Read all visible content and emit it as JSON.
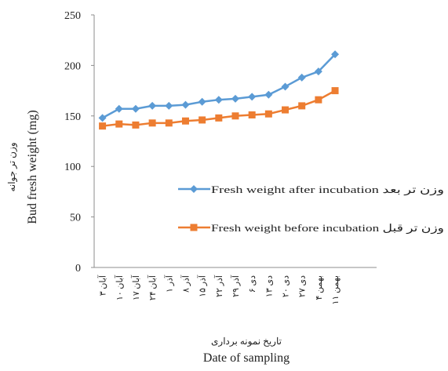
{
  "chart_data": {
    "type": "line",
    "xlabel_fa": "تاریخ نمونه برداری",
    "xlabel": "Date of sampling",
    "ylabel_fa": "وزن تر جوانه",
    "ylabel": "Bud fresh weight (mg)",
    "ylim": [
      0,
      250
    ],
    "yticks": [
      0,
      50,
      100,
      150,
      200,
      250
    ],
    "grid": false,
    "legend_position": "center-right",
    "categories": [
      "۳ آبان",
      "۱۰ آبان",
      "۱۷ آبان",
      "۲۴ آبان",
      "۱ آذر",
      "۸ آذر",
      "۱۵ آذر",
      "۲۲ آذر",
      "۲۹ آذر",
      "۶ دی",
      "۱۳ دی",
      "۲۰ دی",
      "۲۷ دی",
      "۴ بهمن",
      "۱۱ بهمن"
    ],
    "series": [
      {
        "name": "Fresh weight after incubation وزن تر بعد",
        "color": "#5b9bd5",
        "marker": "diamond",
        "values": [
          148,
          157,
          157,
          160,
          160,
          161,
          164,
          166,
          167,
          169,
          171,
          179,
          188,
          194,
          211
        ]
      },
      {
        "name": "Fresh weight before incubation وزن تر قبل",
        "color": "#ed7d31",
        "marker": "square",
        "values": [
          140,
          142,
          141,
          143,
          143,
          145,
          146,
          148,
          150,
          151,
          152,
          156,
          160,
          166,
          175
        ]
      }
    ]
  }
}
